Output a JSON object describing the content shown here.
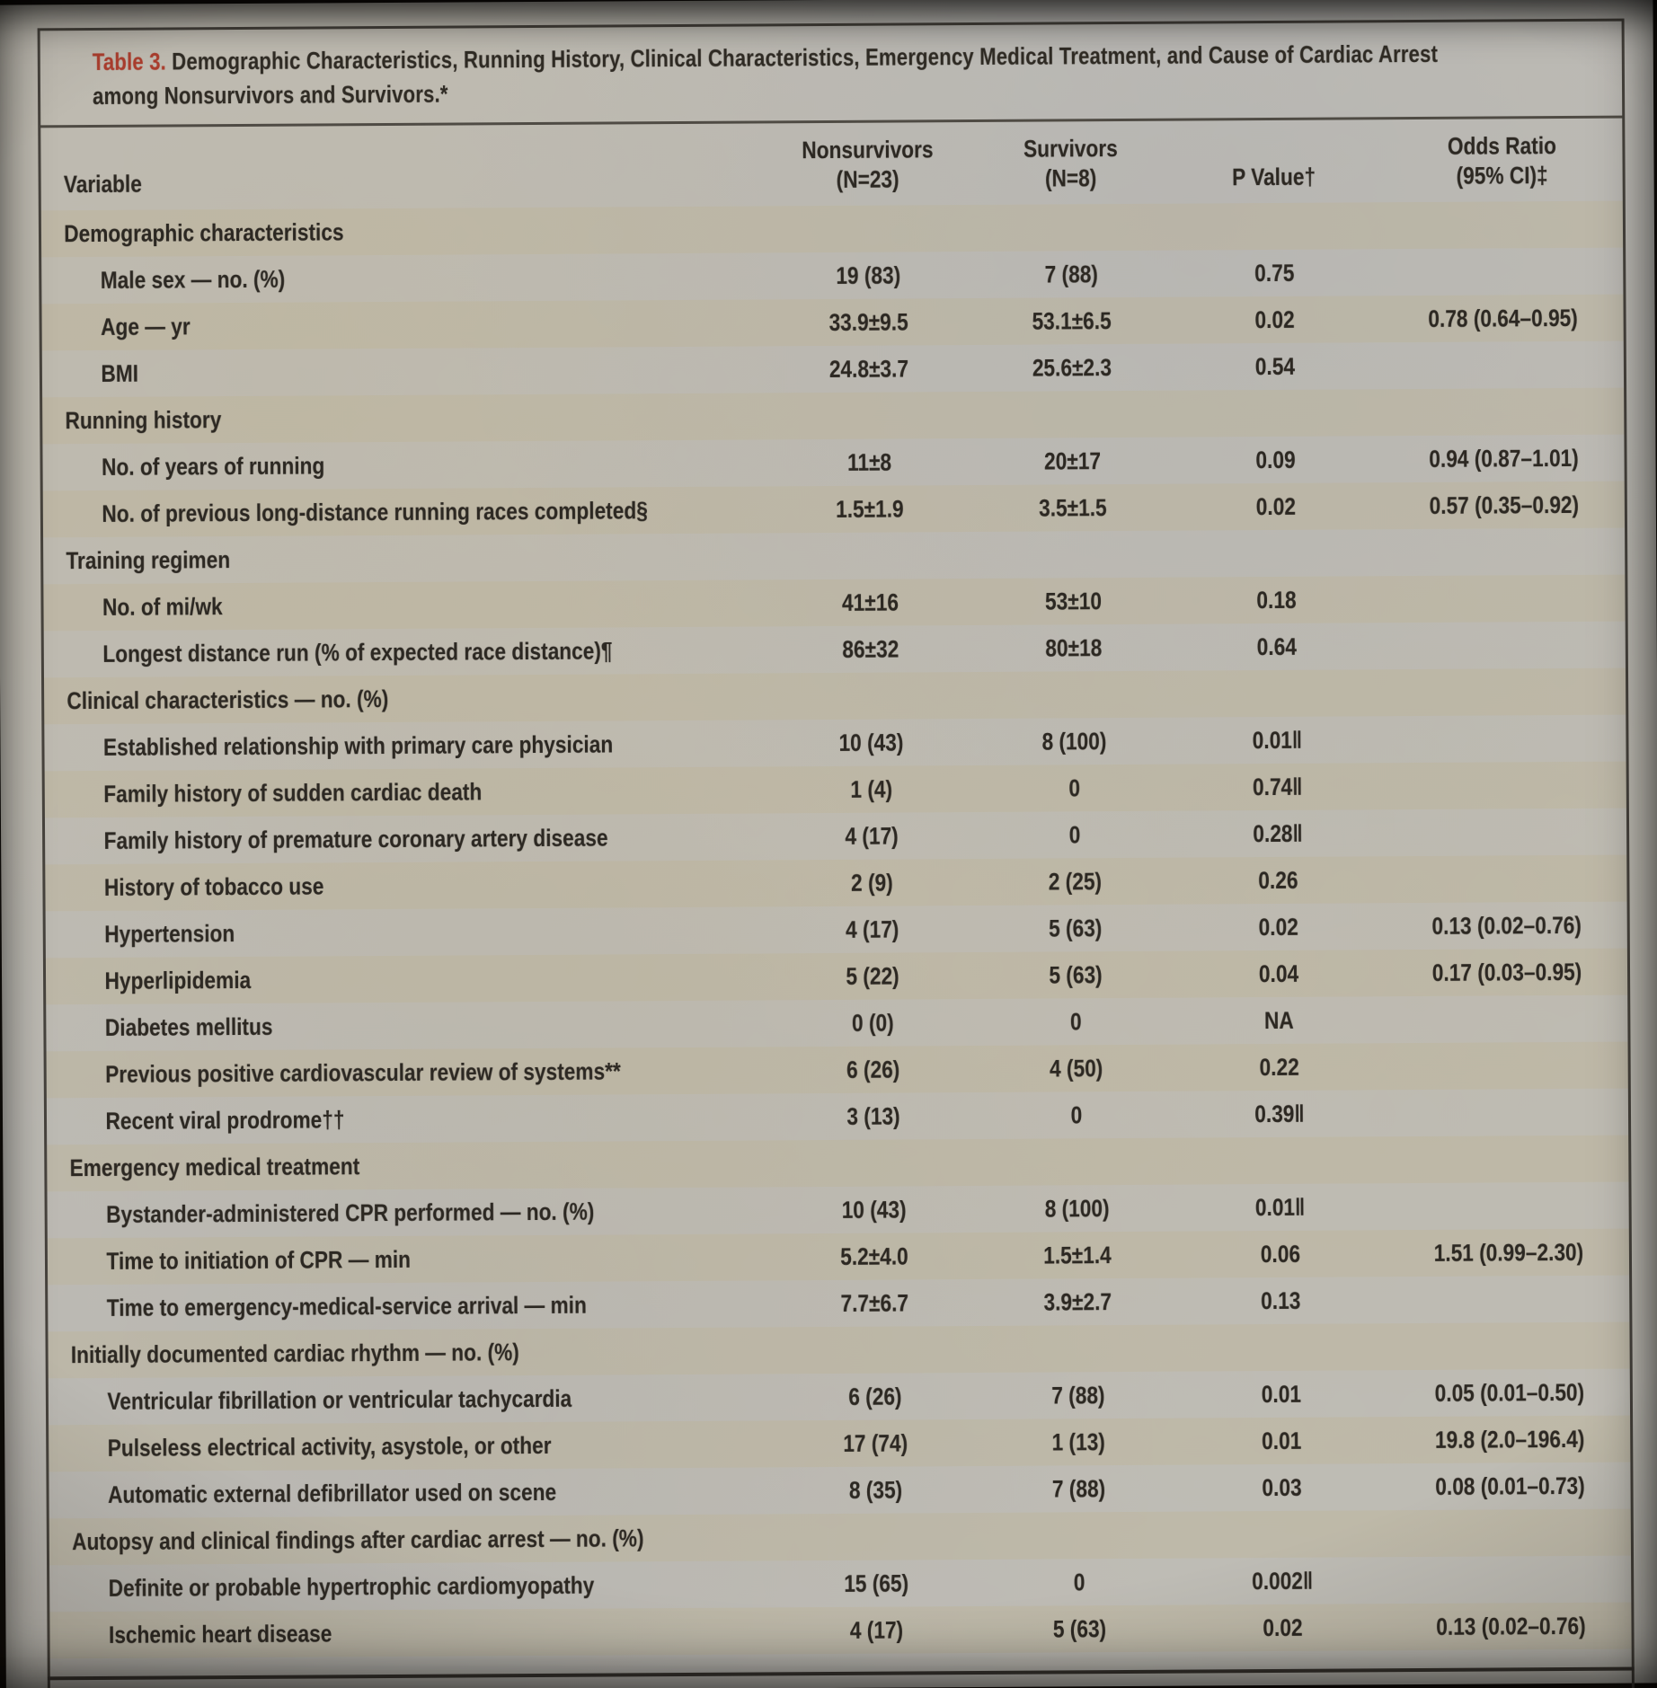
{
  "table": {
    "label": "Table 3.",
    "title_line1": "Demographic Characteristics, Running History, Clinical Characteristics, Emergency Medical Treatment, and Cause of Cardiac Arrest",
    "title_line2": "among Nonsurvivors and Survivors.*",
    "columns": {
      "variable": "Variable",
      "nonsurvivors_line1": "Nonsurvivors",
      "nonsurvivors_line2": "(N=23)",
      "survivors_line1": "Survivors",
      "survivors_line2": "(N=8)",
      "pvalue": "P Value†",
      "odds_line1": "Odds Ratio",
      "odds_line2": "(95% CI)‡"
    },
    "rows": [
      {
        "type": "section",
        "label": "Demographic characteristics"
      },
      {
        "type": "data",
        "label": "Male sex — no. (%)",
        "nonsurvivors": "19 (83)",
        "survivors": "7 (88)",
        "p": "0.75",
        "odds": ""
      },
      {
        "type": "data",
        "label": "Age — yr",
        "nonsurvivors": "33.9±9.5",
        "survivors": "53.1±6.5",
        "p": "0.02",
        "odds": "0.78 (0.64–0.95)"
      },
      {
        "type": "data",
        "label": "BMI",
        "nonsurvivors": "24.8±3.7",
        "survivors": "25.6±2.3",
        "p": "0.54",
        "odds": ""
      },
      {
        "type": "section",
        "label": "Running history"
      },
      {
        "type": "data",
        "label": "No. of years of running",
        "nonsurvivors": "11±8",
        "survivors": "20±17",
        "p": "0.09",
        "odds": "0.94 (0.87–1.01)"
      },
      {
        "type": "data",
        "label": "No. of previous long-distance running races completed§",
        "nonsurvivors": "1.5±1.9",
        "survivors": "3.5±1.5",
        "p": "0.02",
        "odds": "0.57 (0.35–0.92)"
      },
      {
        "type": "section",
        "label": "Training regimen"
      },
      {
        "type": "data",
        "label": "No. of mi/wk",
        "nonsurvivors": "41±16",
        "survivors": "53±10",
        "p": "0.18",
        "odds": ""
      },
      {
        "type": "data",
        "label": "Longest distance run (% of expected race distance)¶",
        "nonsurvivors": "86±32",
        "survivors": "80±18",
        "p": "0.64",
        "odds": ""
      },
      {
        "type": "section",
        "label": "Clinical characteristics — no. (%)"
      },
      {
        "type": "data",
        "label": "Established relationship with primary care physician",
        "nonsurvivors": "10 (43)",
        "survivors": "8 (100)",
        "p": "0.01‖",
        "odds": ""
      },
      {
        "type": "data",
        "label": "Family history of sudden cardiac death",
        "nonsurvivors": "1 (4)",
        "survivors": "0",
        "p": "0.74‖",
        "odds": ""
      },
      {
        "type": "data",
        "label": "Family history of premature coronary artery disease",
        "nonsurvivors": "4 (17)",
        "survivors": "0",
        "p": "0.28‖",
        "odds": ""
      },
      {
        "type": "data",
        "label": "History of tobacco use",
        "nonsurvivors": "2 (9)",
        "survivors": "2 (25)",
        "p": "0.26",
        "odds": ""
      },
      {
        "type": "data",
        "label": "Hypertension",
        "nonsurvivors": "4 (17)",
        "survivors": "5 (63)",
        "p": "0.02",
        "odds": "0.13 (0.02–0.76)"
      },
      {
        "type": "data",
        "label": "Hyperlipidemia",
        "nonsurvivors": "5 (22)",
        "survivors": "5 (63)",
        "p": "0.04",
        "odds": "0.17 (0.03–0.95)"
      },
      {
        "type": "data",
        "label": "Diabetes mellitus",
        "nonsurvivors": "0 (0)",
        "survivors": "0",
        "p": "NA",
        "odds": ""
      },
      {
        "type": "data",
        "label": "Previous positive cardiovascular review of systems**",
        "nonsurvivors": "6 (26)",
        "survivors": "4 (50)",
        "p": "0.22",
        "odds": ""
      },
      {
        "type": "data",
        "label": "Recent viral prodrome††",
        "nonsurvivors": "3 (13)",
        "survivors": "0",
        "p": "0.39‖",
        "odds": ""
      },
      {
        "type": "section",
        "label": "Emergency medical treatment"
      },
      {
        "type": "data",
        "label": "Bystander-administered CPR performed — no. (%)",
        "nonsurvivors": "10 (43)",
        "survivors": "8 (100)",
        "p": "0.01‖",
        "odds": ""
      },
      {
        "type": "data",
        "label": "Time to initiation of CPR — min",
        "nonsurvivors": "5.2±4.0",
        "survivors": "1.5±1.4",
        "p": "0.06",
        "odds": "1.51 (0.99–2.30)"
      },
      {
        "type": "data",
        "label": "Time to emergency-medical-service arrival — min",
        "nonsurvivors": "7.7±6.7",
        "survivors": "3.9±2.7",
        "p": "0.13",
        "odds": ""
      },
      {
        "type": "section",
        "label": "Initially documented cardiac rhythm — no. (%)"
      },
      {
        "type": "data",
        "label": "Ventricular fibrillation or ventricular tachycardia",
        "nonsurvivors": "6 (26)",
        "survivors": "7 (88)",
        "p": "0.01",
        "odds": "0.05 (0.01–0.50)"
      },
      {
        "type": "data",
        "label": "Pulseless electrical activity, asystole, or other",
        "nonsurvivors": "17 (74)",
        "survivors": "1 (13)",
        "p": "0.01",
        "odds": "19.8 (2.0–196.4)"
      },
      {
        "type": "data",
        "label": "Automatic external defibrillator used on scene",
        "nonsurvivors": "8 (35)",
        "survivors": "7 (88)",
        "p": "0.03",
        "odds": "0.08 (0.01–0.73)"
      },
      {
        "type": "section",
        "label": "Autopsy and clinical findings after cardiac arrest — no. (%)"
      },
      {
        "type": "data",
        "label": "Definite or probable hypertrophic cardiomyopathy",
        "nonsurvivors": "15 (65)",
        "survivors": "0",
        "p": "0.002‖",
        "odds": ""
      },
      {
        "type": "data",
        "label": "Ischemic heart disease",
        "nonsurvivors": "4 (17)",
        "survivors": "5 (63)",
        "p": "0.02",
        "odds": "0.13 (0.02–0.76)"
      }
    ],
    "colors": {
      "accent_red": "#b23a28",
      "page_background": "#c0bdb5",
      "row_stripe": "#c1b28c",
      "text": "#2b2620",
      "frame_border": "#46423b"
    }
  }
}
